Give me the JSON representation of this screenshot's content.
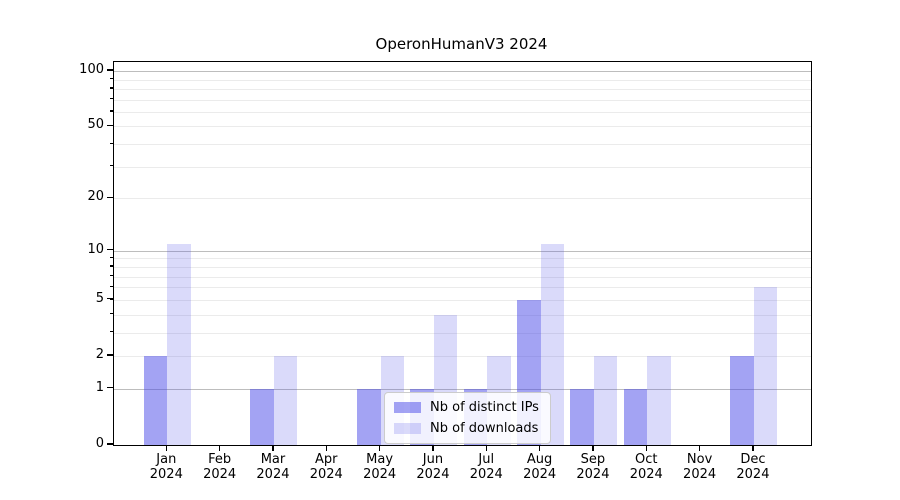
{
  "chart_data": {
    "type": "bar",
    "title": "OperonHumanV3 2024",
    "categories": [
      "Jan",
      "Feb",
      "Mar",
      "Apr",
      "May",
      "Jun",
      "Jul",
      "Aug",
      "Sep",
      "Oct",
      "Nov",
      "Dec"
    ],
    "category_year": "2024",
    "series": [
      {
        "name": "Nb of distinct IPs",
        "color": "rgba(72,72,232,0.5)",
        "values": [
          2,
          0,
          1,
          0,
          1,
          1,
          1,
          5,
          1,
          1,
          0,
          2
        ]
      },
      {
        "name": "Nb of downloads",
        "color": "rgba(72,72,232,0.2)",
        "values": [
          11,
          0,
          2,
          0,
          2,
          4,
          2,
          11,
          2,
          2,
          0,
          6
        ]
      }
    ],
    "yscale": "log1p",
    "ylim": [
      0,
      112
    ],
    "yticks_labeled": [
      0,
      1,
      2,
      5,
      10,
      20,
      50,
      100
    ],
    "gridlines": {
      "major": [
        1,
        10,
        100
      ],
      "minor": [
        2,
        3,
        4,
        5,
        6,
        7,
        8,
        9,
        20,
        30,
        40,
        50,
        60,
        70,
        80,
        90
      ]
    },
    "legend_position": "lower center",
    "grid": true
  },
  "colors": {
    "background": "#ffffff",
    "axis": "#000000",
    "major_grid": "#bdbdbd",
    "minor_grid": "#ebebeb",
    "legend_border": "#cccccc"
  }
}
